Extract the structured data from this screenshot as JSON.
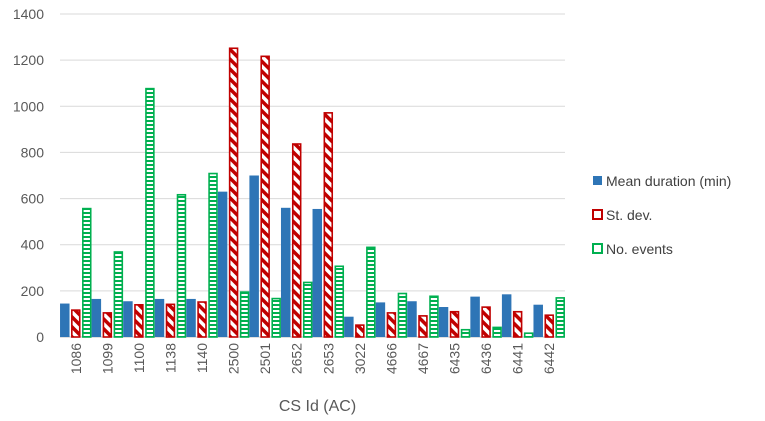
{
  "chart_data": {
    "type": "bar",
    "title": "",
    "xlabel": "CS Id (AC)",
    "ylabel": "",
    "ylim": [
      0,
      1400
    ],
    "yticks": [
      0,
      200,
      400,
      600,
      800,
      1000,
      1200,
      1400
    ],
    "grid": true,
    "legend_position": "right",
    "categories": [
      "1086",
      "1099",
      "1100",
      "1138",
      "1140",
      "2500",
      "2501",
      "2652",
      "2653",
      "3022",
      "4666",
      "4667",
      "6435",
      "6436",
      "6441",
      "6442"
    ],
    "series": [
      {
        "name": "Mean duration (min)",
        "color": "#2e75b6",
        "pattern": "solid",
        "values": [
          145,
          165,
          155,
          165,
          165,
          630,
          700,
          560,
          555,
          88,
          150,
          155,
          130,
          175,
          185,
          140
        ]
      },
      {
        "name": "St. dev.",
        "color": "#c00000",
        "pattern": "diagonal-stripes",
        "values": [
          120,
          108,
          143,
          145,
          155,
          1255,
          1220,
          840,
          975,
          55,
          108,
          95,
          113,
          133,
          113,
          98
        ]
      },
      {
        "name": "No. events",
        "color": "#00b050",
        "pattern": "horizontal-stripes",
        "values": [
          560,
          372,
          1080,
          620,
          712,
          198,
          170,
          240,
          310,
          392,
          192,
          180,
          35,
          45,
          20,
          173
        ]
      }
    ]
  }
}
